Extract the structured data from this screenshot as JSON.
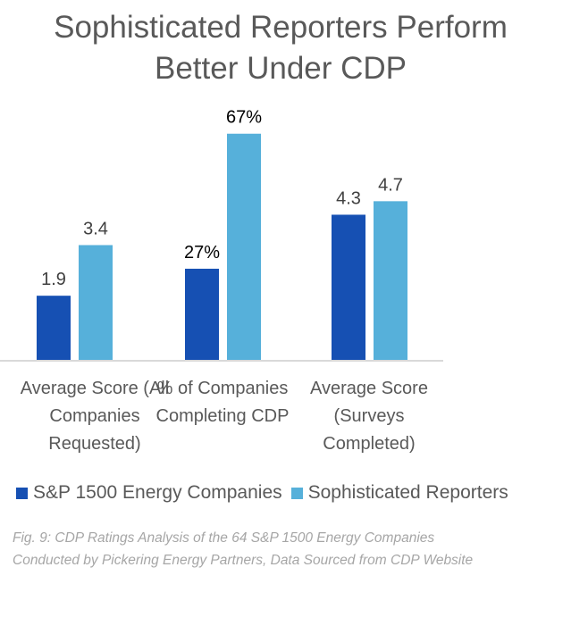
{
  "chart_data": {
    "type": "bar",
    "title": "Sophisticated Reporters Perform Better Under CDP",
    "title_lines": [
      "Sophisticated Reporters Perform",
      "Better Under CDP"
    ],
    "categories": [
      "Average Score (All Companies Requested)",
      "% of Companies Completing CDP",
      "Average Score (Surveys Completed)"
    ],
    "category_lines": [
      [
        "Average Score (All",
        "Companies",
        "Requested)"
      ],
      [
        "% of Companies",
        "Completing CDP"
      ],
      [
        "Average Score",
        "(Surveys",
        "Completed)"
      ]
    ],
    "series": [
      {
        "name": "S&P 1500 Energy Companies",
        "color": "#1650b3",
        "values": [
          1.9,
          27,
          4.3
        ],
        "labels": [
          "1.9",
          "27%",
          "4.3"
        ]
      },
      {
        "name": "Sophisticated Reporters",
        "color": "#56b0da",
        "values": [
          3.4,
          67,
          4.7
        ],
        "labels": [
          "3.4",
          "67%",
          "4.7"
        ]
      }
    ],
    "units": [
      "score",
      "percent",
      "score"
    ],
    "xlabel": "",
    "ylabel": "",
    "grid": false,
    "legend": "bottom-left",
    "caption_lines": [
      "Fig. 9: CDP Ratings Analysis of the 64 S&P 1500 Energy Companies",
      "Conducted by Pickering Energy Partners, Data Sourced from CDP Website"
    ]
  },
  "colors": {
    "axis": "#d9d9d9",
    "label_score": "#404040",
    "label_percent": "#000000"
  }
}
